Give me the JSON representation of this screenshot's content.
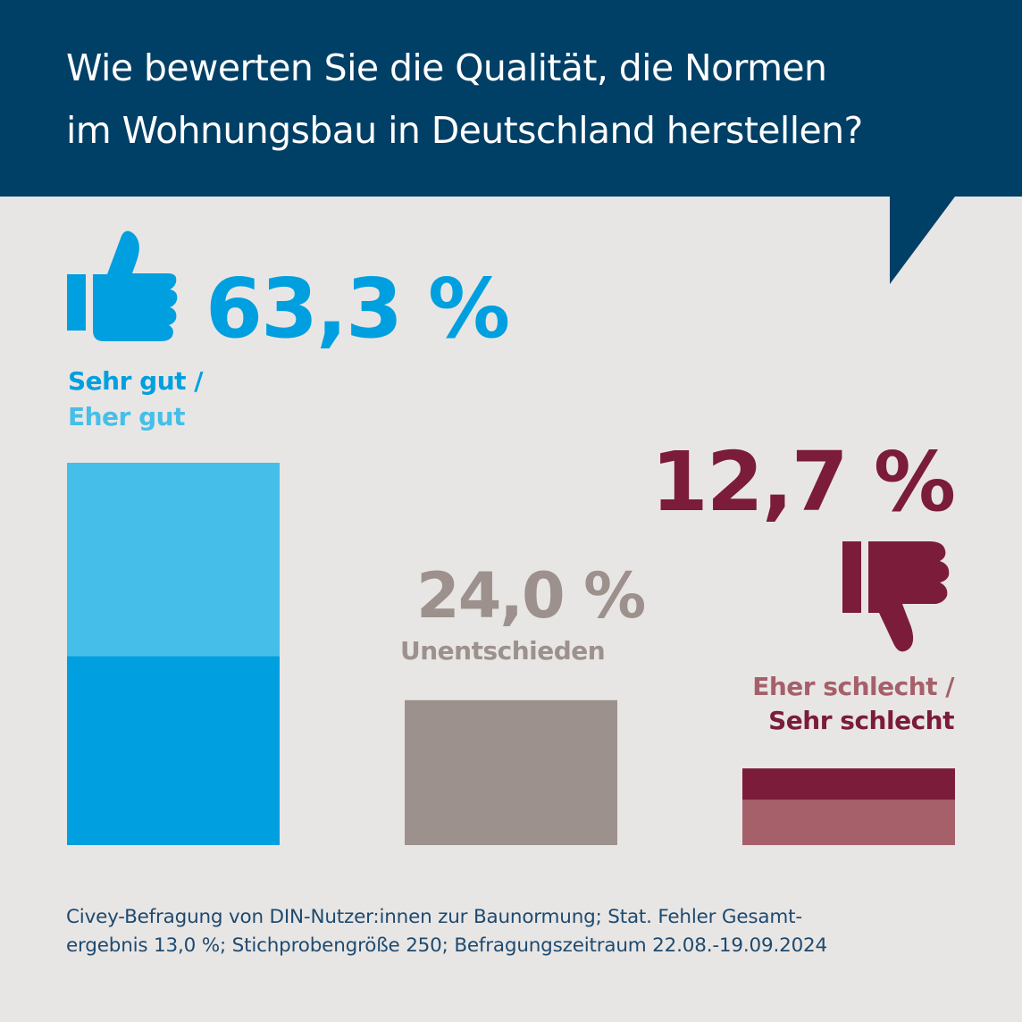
{
  "header": {
    "title_line1": "Wie bewerten Sie die Qualität, die Normen",
    "title_line2": "im Wohnungsbau in Deutschland herstellen?"
  },
  "colors": {
    "header_bg": "#003f66",
    "background": "#e8e6e4",
    "positive_light": "#45bfe9",
    "positive_dark": "#009fe0",
    "neutral": "#9c918c",
    "negative_light": "#a5606a",
    "negative_dark": "#7b1c3b",
    "footer_text": "#1e4a70"
  },
  "icons": {
    "positive": "thumbs-up-icon",
    "negative": "thumbs-down-icon"
  },
  "chart_data": {
    "type": "bar",
    "categories": [
      "Sehr gut / Eher gut",
      "Unentschieden",
      "Eher schlecht / Sehr schlecht"
    ],
    "series": [
      {
        "name": "Sehr gut",
        "values": [
          31.3,
          null,
          null
        ]
      },
      {
        "name": "Eher gut",
        "values": [
          32.0,
          null,
          null
        ]
      },
      {
        "name": "Unentschieden",
        "values": [
          null,
          24.0,
          null
        ]
      },
      {
        "name": "Eher schlecht",
        "values": [
          null,
          null,
          5.2
        ]
      },
      {
        "name": "Sehr schlecht",
        "values": [
          null,
          null,
          7.5
        ]
      }
    ],
    "totals": [
      63.3,
      24.0,
      12.7
    ],
    "value_labels": [
      "63,3 %",
      "24,0 %",
      "12,7 %"
    ],
    "labels": {
      "positive_line1": "Sehr gut /",
      "positive_line2": "Eher gut",
      "neutral": "Unentschieden",
      "negative_line1": "Eher schlecht /",
      "negative_line2": "Sehr schlecht"
    },
    "stacked": true,
    "ylim": [
      0,
      63.3
    ],
    "grid": false,
    "legend": "none"
  },
  "footer": {
    "line1": "Civey-Befragung von DIN-Nutzer:innen zur Baunormung; Stat. Fehler Gesamt-",
    "line2": "ergebnis 13,0 %; Stichprobengröße 250; Befragungszeitraum 22.08.-19.09.2024"
  }
}
